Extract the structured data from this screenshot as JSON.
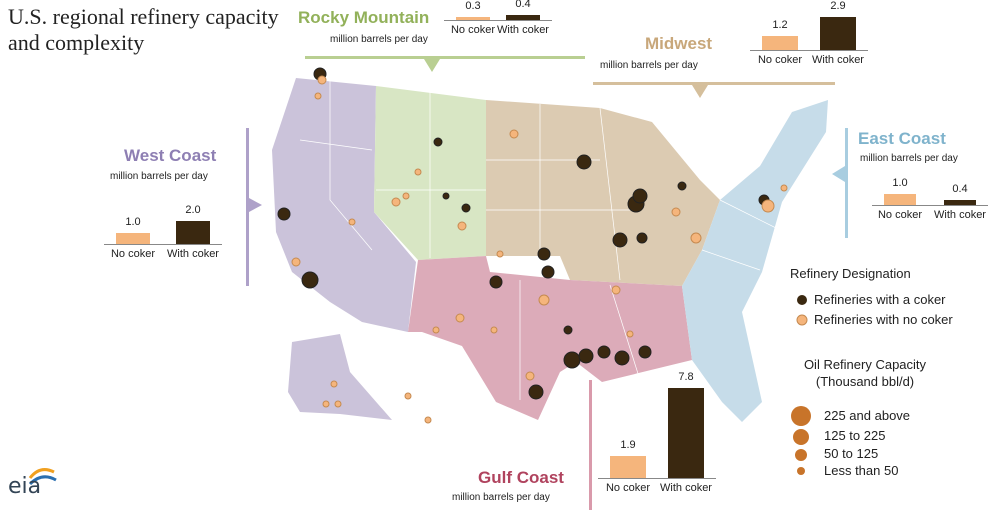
{
  "title": "U.S. regional refinery capacity and complexity",
  "regions": [
    {
      "name": "West Coast",
      "unit": "million barrels per day",
      "categories": [
        "No coker",
        "With coker"
      ],
      "values": [
        1.0,
        2.0
      ],
      "value_labels": [
        "1.0",
        "2.0"
      ]
    },
    {
      "name": "Rocky Mountain",
      "unit": "million barrels per day",
      "categories": [
        "No coker",
        "With coker"
      ],
      "values": [
        0.3,
        0.4
      ],
      "value_labels": [
        "0.3",
        "0.4"
      ]
    },
    {
      "name": "Midwest",
      "unit": "million barrels per day",
      "categories": [
        "No coker",
        "With coker"
      ],
      "values": [
        1.2,
        2.9
      ],
      "value_labels": [
        "1.2",
        "2.9"
      ]
    },
    {
      "name": "East Coast",
      "unit": "million barrels per day",
      "categories": [
        "No coker",
        "With coker"
      ],
      "values": [
        1.0,
        0.4
      ],
      "value_labels": [
        "1.0",
        "0.4"
      ]
    },
    {
      "name": "Gulf Coast",
      "unit": "million barrels per day",
      "categories": [
        "No coker",
        "With coker"
      ],
      "values": [
        1.9,
        7.8
      ],
      "value_labels": [
        "1.9",
        "7.8"
      ]
    }
  ],
  "legend": {
    "designation_title": "Refinery Designation",
    "designations": [
      "Refineries with a coker",
      "Refineries with no coker"
    ],
    "capacity_title": "Oil Refinery Capacity (Thousand bbl/d)",
    "capacity_classes": [
      "225 and above",
      "125 to 225",
      "50 to 125",
      "Less than 50"
    ]
  },
  "logo": "eia"
}
